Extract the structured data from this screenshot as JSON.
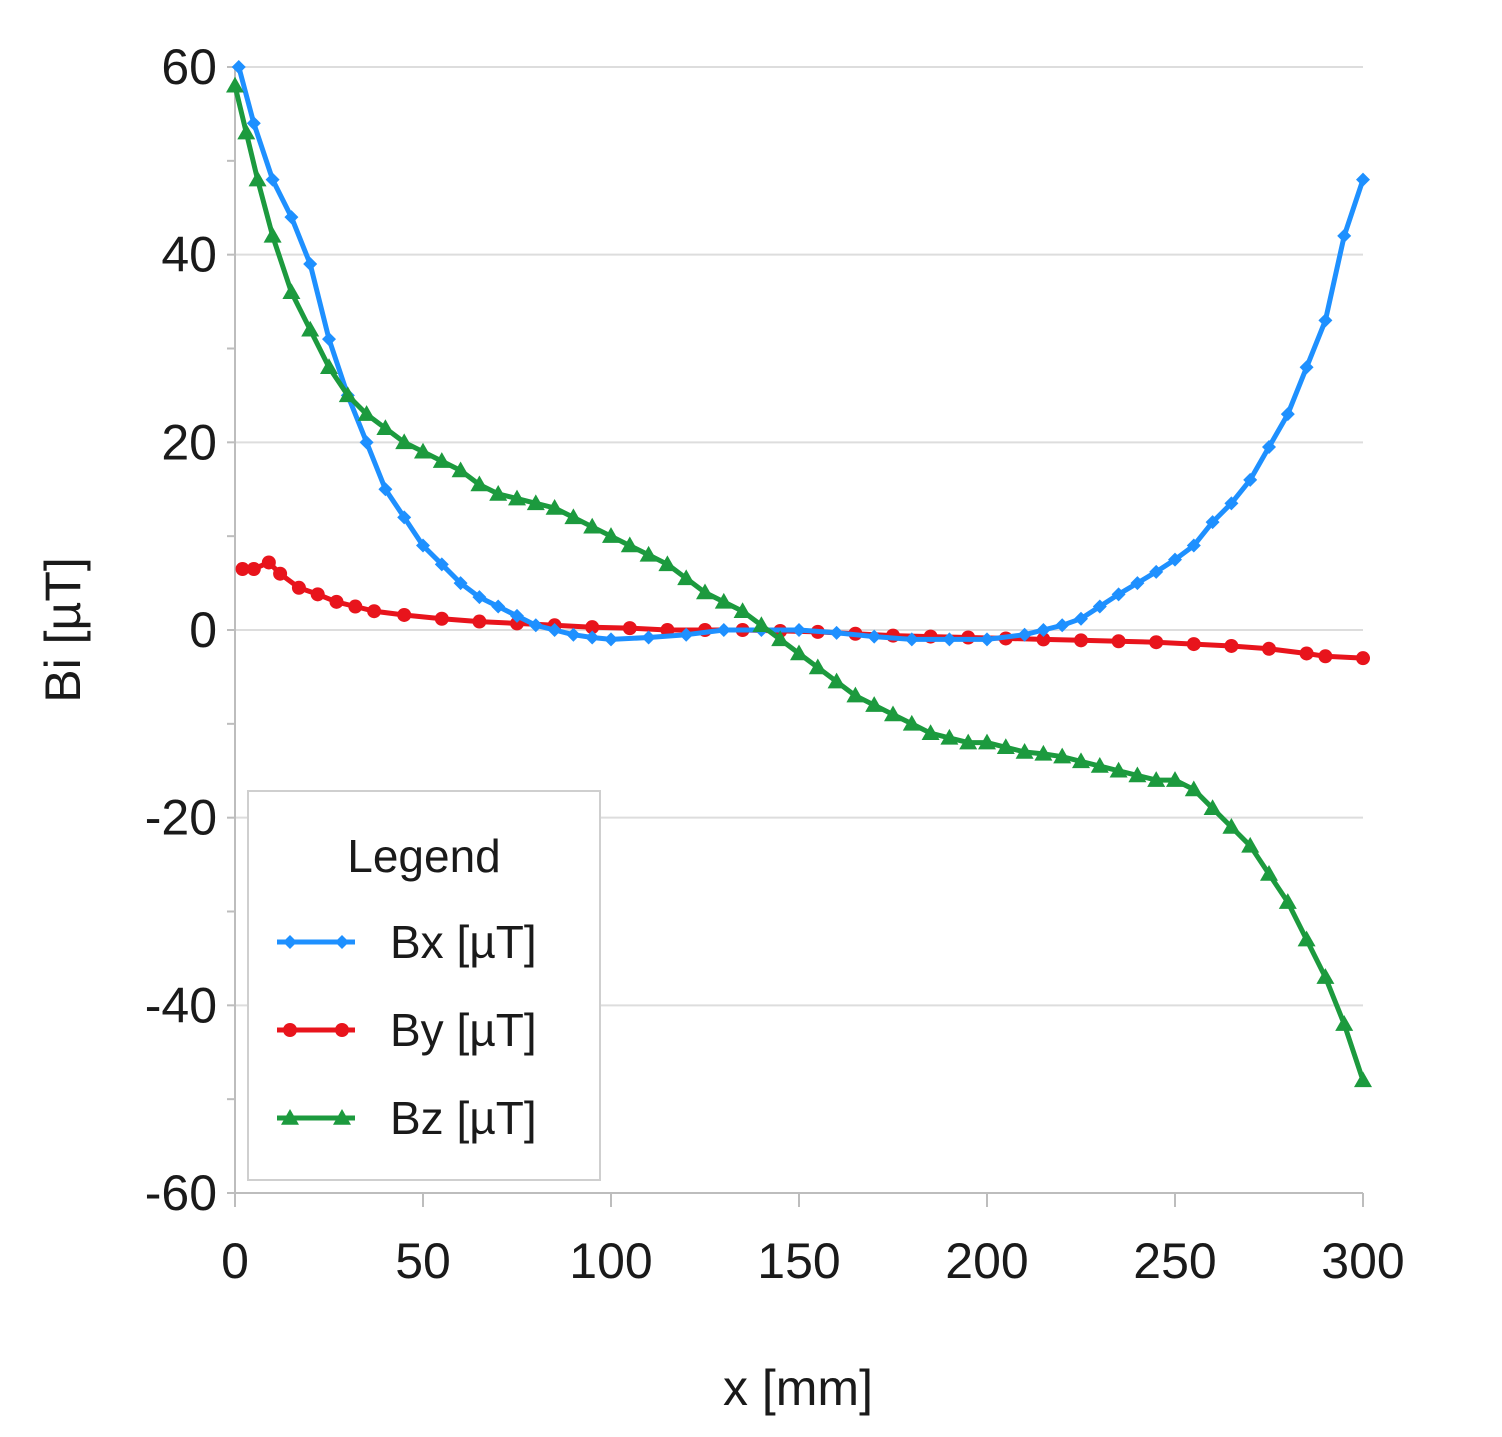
{
  "chart_data": {
    "type": "line",
    "title": "",
    "xlabel": "x [mm]",
    "ylabel": "Bi [µT]",
    "xlim": [
      0,
      300
    ],
    "ylim": [
      -60,
      60
    ],
    "xticks": [
      0,
      50,
      100,
      150,
      200,
      250,
      300
    ],
    "yticks": [
      60,
      40,
      20,
      0,
      -20,
      -40,
      -60
    ],
    "xtick_labels": [
      "0",
      "50",
      "100",
      "150",
      "200",
      "250",
      "300"
    ],
    "ytick_labels": [
      "60",
      "40",
      "20",
      "0",
      "-20",
      "-40",
      "-60"
    ],
    "grid": "horizontal",
    "legend": {
      "title": "Legend",
      "placement": "bottom-left",
      "entries": [
        "Bx [µT]",
        "By [µT]",
        "Bz [µT]"
      ]
    },
    "series": [
      {
        "name": "Bx [µT]",
        "color": "#1e90ff",
        "marker": "diamond",
        "x": [
          1,
          5,
          10,
          15,
          20,
          25,
          30,
          35,
          40,
          45,
          50,
          55,
          60,
          65,
          70,
          75,
          80,
          85,
          90,
          95,
          100,
          110,
          120,
          130,
          140,
          150,
          160,
          170,
          180,
          190,
          200,
          210,
          215,
          220,
          225,
          230,
          235,
          240,
          245,
          250,
          255,
          260,
          265,
          270,
          275,
          280,
          285,
          290,
          295,
          300
        ],
        "y": [
          60,
          54,
          48,
          44,
          39,
          31,
          25,
          20,
          15,
          12,
          9,
          7,
          5,
          3.5,
          2.5,
          1.5,
          0.5,
          0,
          -0.5,
          -0.8,
          -1,
          -0.8,
          -0.5,
          0,
          0,
          0,
          -0.3,
          -0.7,
          -1,
          -1,
          -1,
          -0.5,
          0,
          0.5,
          1.2,
          2.5,
          3.8,
          5,
          6.2,
          7.5,
          9,
          11.5,
          13.5,
          16,
          19.5,
          23,
          28,
          33,
          42,
          48
        ]
      },
      {
        "name": "By [µT]",
        "color": "#e8141c",
        "marker": "circle",
        "x": [
          2,
          5,
          9,
          12,
          17,
          22,
          27,
          32,
          37,
          45,
          55,
          65,
          75,
          85,
          95,
          105,
          115,
          125,
          135,
          145,
          155,
          165,
          175,
          185,
          195,
          205,
          215,
          225,
          235,
          245,
          255,
          265,
          275,
          285,
          290,
          300
        ],
        "y": [
          6.5,
          6.5,
          7.2,
          6,
          4.5,
          3.8,
          3,
          2.5,
          2,
          1.6,
          1.2,
          0.9,
          0.7,
          0.5,
          0.3,
          0.2,
          0,
          0,
          0,
          -0.1,
          -0.2,
          -0.4,
          -0.6,
          -0.7,
          -0.8,
          -0.9,
          -1,
          -1.1,
          -1.2,
          -1.3,
          -1.5,
          -1.7,
          -2,
          -2.5,
          -2.8,
          -3
        ]
      },
      {
        "name": "Bz [µT]",
        "color": "#1c9a3e",
        "marker": "triangle",
        "x": [
          0,
          3,
          6,
          10,
          15,
          20,
          25,
          30,
          35,
          40,
          45,
          50,
          55,
          60,
          65,
          70,
          75,
          80,
          85,
          90,
          95,
          100,
          105,
          110,
          115,
          120,
          125,
          130,
          135,
          140,
          145,
          150,
          155,
          160,
          165,
          170,
          175,
          180,
          185,
          190,
          195,
          200,
          205,
          210,
          215,
          220,
          225,
          230,
          235,
          240,
          245,
          250,
          255,
          260,
          265,
          270,
          275,
          280,
          285,
          290,
          295,
          300
        ],
        "y": [
          58,
          53,
          48,
          42,
          36,
          32,
          28,
          25,
          23,
          21.5,
          20,
          19,
          18,
          17,
          15.5,
          14.5,
          14,
          13.5,
          13,
          12,
          11,
          10,
          9,
          8,
          7,
          5.5,
          4,
          3,
          2,
          0.5,
          -1,
          -2.5,
          -4,
          -5.5,
          -7,
          -8,
          -9,
          -10,
          -11,
          -11.5,
          -12,
          -12,
          -12.5,
          -13,
          -13.2,
          -13.5,
          -14,
          -14.5,
          -15,
          -15.5,
          -16,
          -16,
          -17,
          -19,
          -21,
          -23,
          -26,
          -29,
          -33,
          -37,
          -42,
          -48
        ]
      }
    ]
  }
}
